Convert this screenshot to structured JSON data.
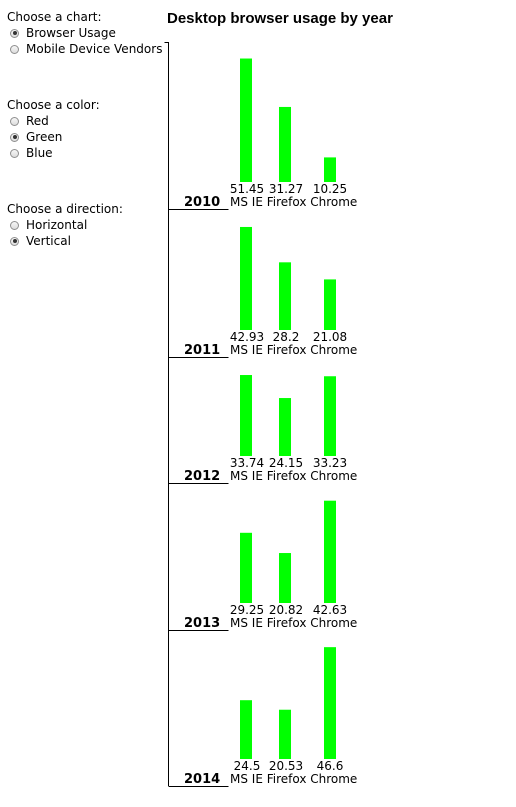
{
  "controls": {
    "chart": {
      "label": "Choose a chart:",
      "options": [
        "Browser Usage",
        "Mobile Device Vendors"
      ],
      "selected": 0
    },
    "color": {
      "label": "Choose a color:",
      "options": [
        "Red",
        "Green",
        "Blue"
      ],
      "selected": 1
    },
    "direction": {
      "label": "Choose a direction:",
      "options": [
        "Horizontal",
        "Vertical"
      ],
      "selected": 1
    }
  },
  "bar_color": "#00ff00",
  "chart_data": {
    "type": "bar",
    "title": "Desktop browser usage by year",
    "categories": [
      "MS IE",
      "Firefox",
      "Chrome"
    ],
    "panels": [
      {
        "label": "2010",
        "values": [
          51.45,
          31.27,
          10.25
        ]
      },
      {
        "label": "2011",
        "values": [
          42.93,
          28.2,
          21.08
        ]
      },
      {
        "label": "2012",
        "values": [
          33.74,
          24.15,
          33.23
        ]
      },
      {
        "label": "2013",
        "values": [
          29.25,
          20.82,
          42.63
        ]
      },
      {
        "label": "2014",
        "values": [
          24.5,
          20.53,
          46.6
        ]
      }
    ]
  }
}
